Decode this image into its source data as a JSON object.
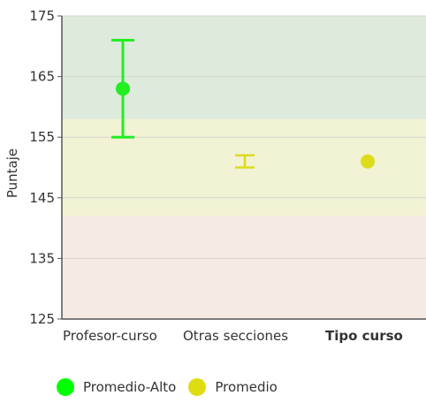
{
  "chart_data": {
    "type": "scatter",
    "ylabel": "Puntaje",
    "ylim": [
      125,
      175
    ],
    "yticks": [
      125,
      135,
      145,
      155,
      165,
      175
    ],
    "bands": [
      {
        "from": 125,
        "to": 142,
        "color": "#f5ebe2"
      },
      {
        "from": 142,
        "to": 158,
        "color": "#f2f2d4"
      },
      {
        "from": 158,
        "to": 175,
        "color": "#deeadc"
      }
    ],
    "categories": [
      "Profesor-curso",
      "Otras secciones",
      "Tipo curso"
    ],
    "bold_categories": [
      "Tipo curso"
    ],
    "points": [
      {
        "category": "Profesor-curso",
        "value": 163,
        "low": 155,
        "high": 171,
        "color": "#22ee22"
      },
      {
        "category": "Otras secciones",
        "low": 150,
        "high": 152,
        "color": "#dcdc1a"
      },
      {
        "category": "Tipo curso",
        "value": 151,
        "color": "#dcdc1a"
      }
    ],
    "legend": [
      {
        "label": "Promedio-Alto",
        "color": "#00ff00"
      },
      {
        "label": "Promedio",
        "color": "#dddd11"
      }
    ]
  }
}
